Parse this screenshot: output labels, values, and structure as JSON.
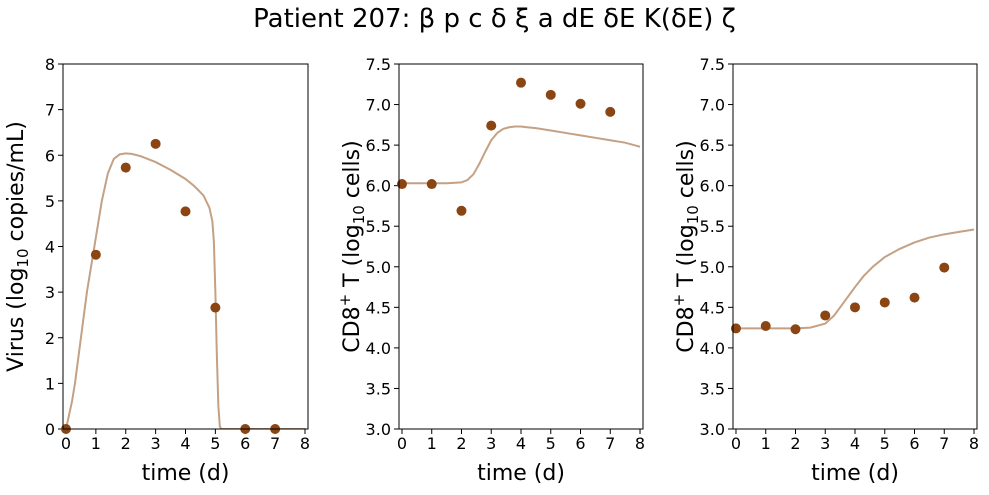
{
  "figure": {
    "title": "Patient 207: β p c δ ξ a dE δE K(δE) ζ"
  },
  "colors": {
    "model_line": "#c4a184",
    "data_points": "#8b4513",
    "axes": "#000000"
  },
  "chart_data": [
    {
      "type": "line",
      "panel": "virus",
      "xlabel": "time (d)",
      "ylabel_main": "Virus (log",
      "ylabel_sub": "10",
      "ylabel_tail": " copies/mL)",
      "xlim": [
        -0.1,
        8.1
      ],
      "ylim": [
        0,
        8
      ],
      "xticks": [
        0,
        1,
        2,
        3,
        4,
        5,
        6,
        7,
        8
      ],
      "yticks": [
        0,
        1,
        2,
        3,
        4,
        5,
        6,
        7,
        8
      ],
      "ytick_labels": [
        "0",
        "1",
        "2",
        "3",
        "4",
        "5",
        "6",
        "7",
        "8"
      ],
      "series": [
        {
          "kind": "model",
          "x": [
            0,
            0.1,
            0.2,
            0.3,
            0.4,
            0.5,
            0.6,
            0.7,
            0.8,
            0.9,
            1.0,
            1.2,
            1.4,
            1.6,
            1.8,
            2.0,
            2.2,
            2.5,
            3.0,
            3.5,
            4.0,
            4.3,
            4.6,
            4.8,
            4.9,
            4.95,
            5.0,
            5.05,
            5.1,
            5.15,
            5.2,
            5.5,
            6.0,
            7.0,
            8.0
          ],
          "y": [
            0,
            0.3,
            0.6,
            1.0,
            1.5,
            2.0,
            2.5,
            3.0,
            3.4,
            3.8,
            4.2,
            5.0,
            5.6,
            5.92,
            6.02,
            6.04,
            6.03,
            5.98,
            5.85,
            5.68,
            5.48,
            5.32,
            5.12,
            4.85,
            4.55,
            4.1,
            3.0,
            1.6,
            0.5,
            0.05,
            0,
            0,
            0,
            0,
            0
          ]
        },
        {
          "kind": "data",
          "x": [
            0,
            1,
            2,
            3,
            4,
            5,
            6,
            7
          ],
          "y": [
            0.0,
            3.82,
            5.73,
            6.25,
            4.77,
            2.66,
            0.0,
            0.0
          ]
        }
      ]
    },
    {
      "type": "line",
      "panel": "cd8-lung",
      "xlabel": "time (d)",
      "ylabel_main": "CD8",
      "ylabel_sup": "+",
      "ylabel_mid": " T (log",
      "ylabel_sub": "10",
      "ylabel_tail": " cells)",
      "xlim": [
        -0.1,
        8.1
      ],
      "ylim": [
        3.0,
        7.5
      ],
      "xticks": [
        0,
        1,
        2,
        3,
        4,
        5,
        6,
        7,
        8
      ],
      "yticks": [
        3.0,
        3.5,
        4.0,
        4.5,
        5.0,
        5.5,
        6.0,
        6.5,
        7.0,
        7.5
      ],
      "ytick_labels": [
        "3.0",
        "3.5",
        "4.0",
        "4.5",
        "5.0",
        "5.5",
        "6.0",
        "6.5",
        "7.0",
        "7.5"
      ],
      "series": [
        {
          "kind": "model",
          "x": [
            0,
            1.0,
            1.5,
            2.0,
            2.2,
            2.4,
            2.6,
            2.8,
            3.0,
            3.2,
            3.4,
            3.6,
            3.8,
            4.0,
            4.2,
            4.5,
            5.0,
            5.5,
            6.0,
            6.5,
            7.0,
            7.5,
            8.0
          ],
          "y": [
            6.03,
            6.03,
            6.03,
            6.04,
            6.07,
            6.14,
            6.27,
            6.42,
            6.56,
            6.65,
            6.7,
            6.72,
            6.73,
            6.73,
            6.72,
            6.71,
            6.68,
            6.65,
            6.62,
            6.59,
            6.56,
            6.53,
            6.48
          ]
        },
        {
          "kind": "data",
          "x": [
            0,
            1,
            2,
            3,
            4,
            5,
            6,
            7
          ],
          "y": [
            6.02,
            6.02,
            5.69,
            6.74,
            7.27,
            7.12,
            7.01,
            6.91
          ]
        }
      ]
    },
    {
      "type": "line",
      "panel": "cd8-blood",
      "xlabel": "time (d)",
      "ylabel_main": "CD8",
      "ylabel_sup": "+",
      "ylabel_mid": " T (log",
      "ylabel_sub": "10",
      "ylabel_tail": " cells)",
      "xlim": [
        -0.1,
        8.1
      ],
      "ylim": [
        3.0,
        7.5
      ],
      "xticks": [
        0,
        1,
        2,
        3,
        4,
        5,
        6,
        7,
        8
      ],
      "yticks": [
        3.0,
        3.5,
        4.0,
        4.5,
        5.0,
        5.5,
        6.0,
        6.5,
        7.0,
        7.5
      ],
      "ytick_labels": [
        "3.0",
        "3.5",
        "4.0",
        "4.5",
        "5.0",
        "5.5",
        "6.0",
        "6.5",
        "7.0",
        "7.5"
      ],
      "series": [
        {
          "kind": "model",
          "x": [
            0,
            1.0,
            2.0,
            2.5,
            3.0,
            3.3,
            3.6,
            4.0,
            4.3,
            4.6,
            5.0,
            5.5,
            6.0,
            6.5,
            7.0,
            7.5,
            8.0
          ],
          "y": [
            4.24,
            4.24,
            4.24,
            4.25,
            4.3,
            4.4,
            4.55,
            4.75,
            4.89,
            5.0,
            5.12,
            5.22,
            5.3,
            5.36,
            5.4,
            5.43,
            5.46
          ]
        },
        {
          "kind": "data",
          "x": [
            0,
            1,
            2,
            3,
            4,
            5,
            6,
            7
          ],
          "y": [
            4.24,
            4.27,
            4.23,
            4.4,
            4.5,
            4.56,
            4.62,
            4.99
          ]
        }
      ]
    }
  ]
}
